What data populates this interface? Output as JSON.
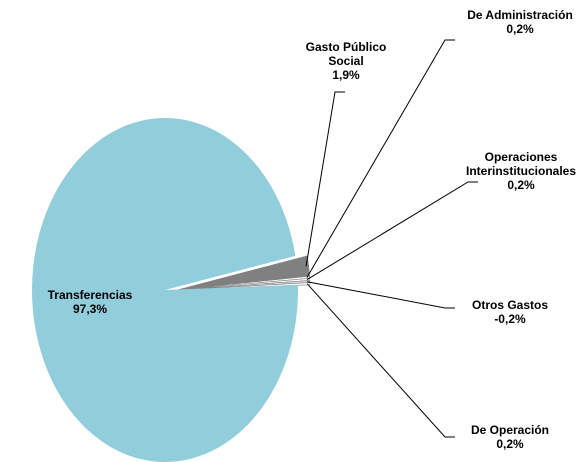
{
  "chart_data": {
    "type": "pie",
    "categories": [
      "Gasto Público Social",
      "De Administración",
      "Operaciones Interinstitucionales",
      "Otros Gastos",
      "De Operación",
      "Transferencias"
    ],
    "values": [
      1.9,
      0.2,
      0.2,
      -0.2,
      0.2,
      97.3
    ],
    "value_labels": [
      "1,9%",
      "0,2%",
      "0,2%",
      "-0,2%",
      "0,2%",
      "97,3%"
    ],
    "colors": [
      "#808080",
      "#ffffff",
      "#ffffff",
      "#d9d9d9",
      "#ffffff",
      "#92cddc"
    ]
  }
}
